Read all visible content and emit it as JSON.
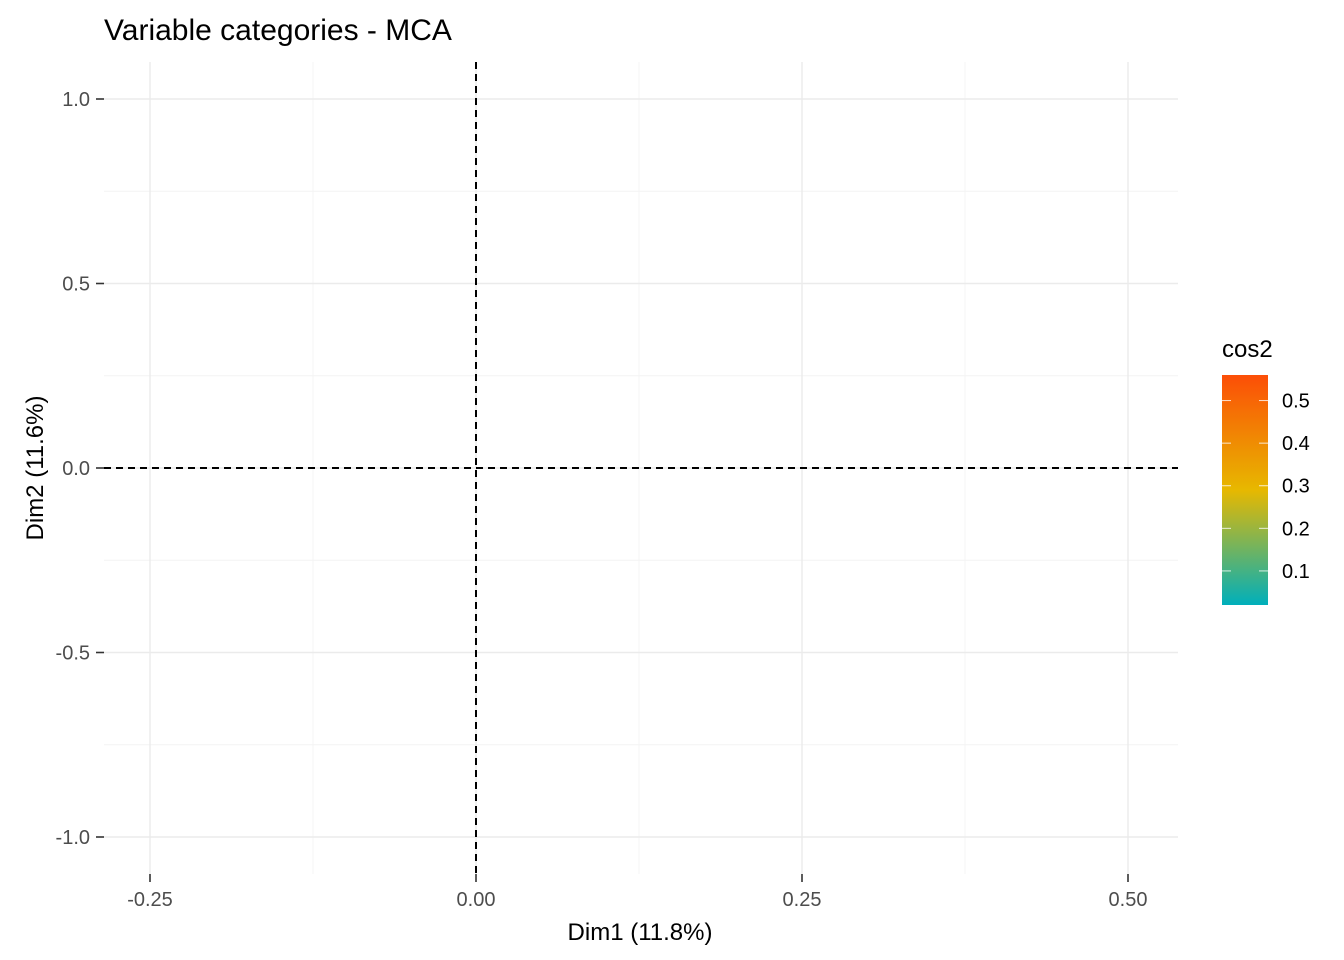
{
  "chart_data": {
    "type": "scatter",
    "title": "Variable categories - MCA",
    "xlabel": "Dim1 (11.8%)",
    "ylabel": "Dim2 (11.6%)",
    "xlim": [
      -0.3,
      0.54
    ],
    "ylim": [
      -1.1,
      1.1
    ],
    "x_ticks": [
      -0.25,
      0.0,
      0.25,
      0.5
    ],
    "x_tick_labels": [
      "-0.25",
      "0.00",
      "0.25",
      "0.50"
    ],
    "y_ticks": [
      -1.0,
      -0.5,
      0.0,
      0.5,
      1.0
    ],
    "y_tick_labels": [
      "-1.0",
      "-0.5",
      "0.0",
      "0.5",
      "1.0"
    ],
    "reference_lines": {
      "x": 0,
      "y": 0,
      "style": "dashed"
    },
    "points": [],
    "grid": true,
    "legend": {
      "title": "cos2",
      "placement": "right",
      "type": "gradient",
      "range": [
        0.02,
        0.56
      ],
      "breaks": [
        0.1,
        0.2,
        0.3,
        0.4,
        0.5
      ],
      "break_labels": [
        "0.1",
        "0.2",
        "0.3",
        "0.4",
        "0.5"
      ],
      "colors": [
        "#00AFBB",
        "#E7B800",
        "#FC4E07"
      ]
    }
  }
}
